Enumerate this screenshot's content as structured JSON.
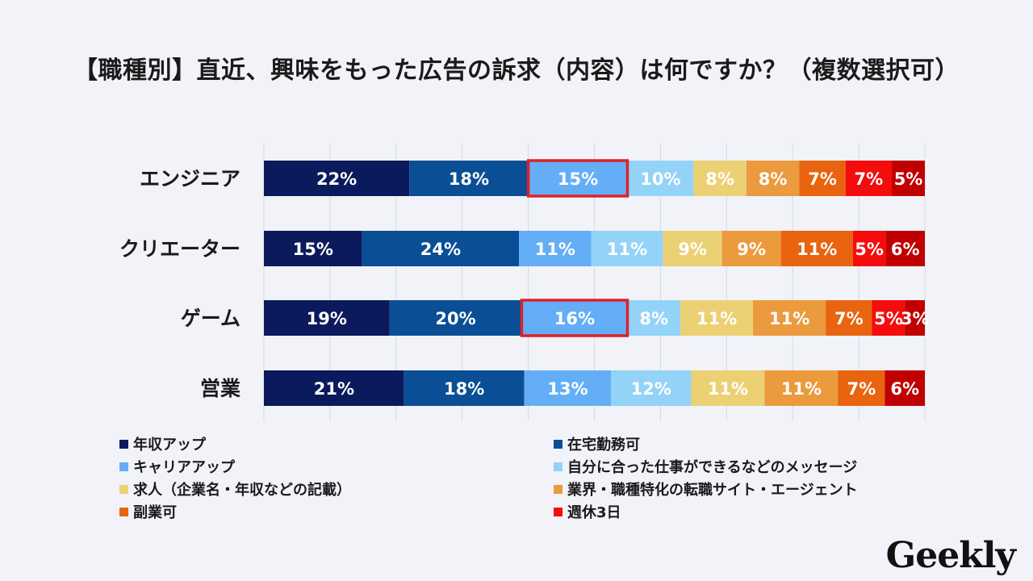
{
  "title": "【職種別】直近、興味をもった広告の訴求（内容）は何ですか？（複数選択可）",
  "logo_text": "Geekly",
  "chart_data": {
    "type": "bar",
    "orientation": "horizontal",
    "stacked": true,
    "normalized_percent": true,
    "categories": [
      "エンジニア",
      "クリエーター",
      "ゲーム",
      "営業"
    ],
    "series": [
      {
        "name": "年収アップ",
        "color": "#0b1a5c",
        "values": [
          22,
          15,
          19,
          21
        ]
      },
      {
        "name": "在宅勤務可",
        "color": "#0a4f96",
        "values": [
          18,
          24,
          20,
          18
        ]
      },
      {
        "name": "キャリアアップ",
        "color": "#63aef7",
        "values": [
          15,
          11,
          16,
          13
        ]
      },
      {
        "name": "自分に合った仕事ができるなどのメッセージ",
        "color": "#93d3f7",
        "values": [
          10,
          11,
          8,
          12
        ]
      },
      {
        "name": "求人（企業名・年収などの記載）",
        "color": "#ecd074",
        "values": [
          8,
          9,
          11,
          11
        ]
      },
      {
        "name": "業界・職種特化の転職サイト・エージェント",
        "color": "#eb9a3e",
        "values": [
          8,
          9,
          11,
          11
        ]
      },
      {
        "name": "副業可",
        "color": "#e8640f",
        "values": [
          7,
          11,
          7,
          7
        ]
      },
      {
        "name": "週休3日",
        "color": "#f50c0c",
        "values": [
          7,
          5,
          5,
          0
        ]
      },
      {
        "name": "",
        "color": "#c00000",
        "values": [
          5,
          6,
          3,
          6
        ]
      }
    ],
    "highlights": [
      {
        "category": "エンジニア",
        "series": "キャリアアップ",
        "color": "#e0202a"
      },
      {
        "category": "ゲーム",
        "series": "キャリアアップ",
        "color": "#e0202a"
      }
    ],
    "value_suffix": "%",
    "grid": true,
    "legend_position": "bottom"
  }
}
